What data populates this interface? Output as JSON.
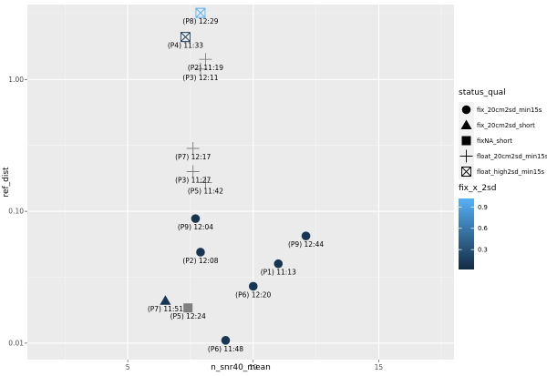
{
  "chart_data": {
    "type": "scatter",
    "xlabel": "n_snr40_mean",
    "ylabel": "ref_dist",
    "x_scale": "linear",
    "y_scale": "log10",
    "xlim": [
      1,
      18
    ],
    "ylim": [
      0.0075,
      3.7
    ],
    "x_ticks": [
      5,
      10,
      15
    ],
    "x_tick_labels": [
      "5",
      "10",
      "15"
    ],
    "y_ticks": [
      0.01,
      0.1,
      1
    ],
    "y_tick_labels": [
      "0.01",
      "0.10",
      "1.00"
    ],
    "grid": true,
    "legend_position": "right",
    "legends": {
      "shape": {
        "title": "status_qual",
        "entries": [
          {
            "label": "fix_20cm2sd_min15s",
            "shape": "circle"
          },
          {
            "label": "fix_20cm2sd_short",
            "shape": "triangle"
          },
          {
            "label": "fixNA_short",
            "shape": "square"
          },
          {
            "label": "float_20cm2sd_min15s",
            "shape": "plus"
          },
          {
            "label": "float_high2sd_min15s",
            "shape": "boxcross"
          }
        ]
      },
      "color": {
        "title": "fix_x_2sd",
        "ticks": [
          0.3,
          0.6,
          0.9
        ],
        "tick_labels": [
          "0.3",
          "0.6",
          "0.9"
        ],
        "range": [
          0.02,
          1.02
        ],
        "low_color": "#132B43",
        "high_color": "#56B1F7"
      }
    },
    "colors": {
      "panel_bg": "#EBEBEB",
      "grid_major": "#FFFFFF",
      "grid_minor": "#F5F5F5",
      "axis_text": "#4D4D4D",
      "na_gray": "#7F7F7F"
    },
    "points": [
      {
        "label": "(P8) 12:29",
        "x": 7.9,
        "y": 3.2,
        "shape": "boxcross",
        "color": 1.0
      },
      {
        "label": "(P4) 11:33",
        "x": 7.3,
        "y": 2.1,
        "shape": "boxcross",
        "color": 0.15
      },
      {
        "label": "(P2) 11:19",
        "x": 8.1,
        "y": 1.42,
        "shape": "plus",
        "color": null
      },
      {
        "label": "(P3) 12:11",
        "x": 7.9,
        "y": 1.2,
        "shape": "plus",
        "color": null
      },
      {
        "label": "(P7) 12:17",
        "x": 7.6,
        "y": 0.3,
        "shape": "plus",
        "color": null
      },
      {
        "label": "(P3) 11:27",
        "x": 7.6,
        "y": 0.2,
        "shape": "plus",
        "color": null
      },
      {
        "label": "(P5) 11:42",
        "x": 8.1,
        "y": 0.165,
        "shape": "plus",
        "color": null
      },
      {
        "label": "(P9) 12:04",
        "x": 7.7,
        "y": 0.088,
        "shape": "circle",
        "color": 0.1
      },
      {
        "label": "(P9) 12:44",
        "x": 12.1,
        "y": 0.065,
        "shape": "circle",
        "color": 0.1
      },
      {
        "label": "(P2) 12:08",
        "x": 7.9,
        "y": 0.049,
        "shape": "circle",
        "color": 0.1
      },
      {
        "label": "(P1) 11:13",
        "x": 11.0,
        "y": 0.04,
        "shape": "circle",
        "color": 0.1
      },
      {
        "label": "(P6) 12:20",
        "x": 10.0,
        "y": 0.027,
        "shape": "circle",
        "color": 0.1
      },
      {
        "label": "(P7) 11:51",
        "x": 6.5,
        "y": 0.021,
        "shape": "triangle",
        "color": 0.1
      },
      {
        "label": "(P5) 12:24",
        "x": 7.4,
        "y": 0.0185,
        "shape": "square",
        "color": null
      },
      {
        "label": "(P6) 11:48",
        "x": 8.9,
        "y": 0.0105,
        "shape": "circle",
        "color": 0.1
      }
    ]
  }
}
